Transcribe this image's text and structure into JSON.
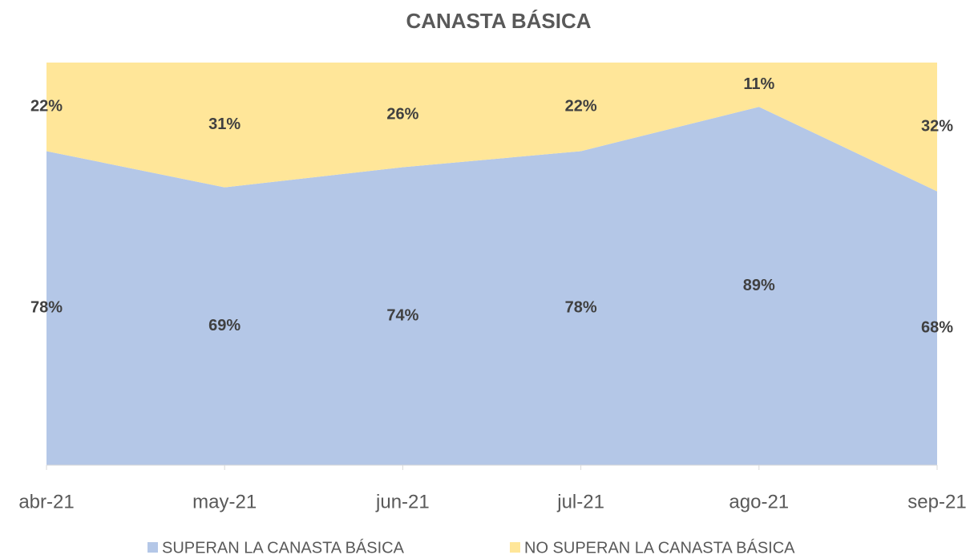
{
  "chart_data": {
    "type": "stacked_area",
    "title": "CANASTA BÁSICA",
    "categories": [
      "abr-21",
      "may-21",
      "jun-21",
      "jul-21",
      "ago-21",
      "sep-21"
    ],
    "series": [
      {
        "name": "SUPERAN LA CANASTA BÁSICA",
        "color": "#b4c7e7",
        "values": [
          78,
          69,
          74,
          78,
          89,
          68
        ],
        "value_labels": [
          "78%",
          "69%",
          "74%",
          "78%",
          "89%",
          "68%"
        ]
      },
      {
        "name": "NO SUPERAN LA CANASTA BÁSICA",
        "color": "#ffe699",
        "values": [
          22,
          31,
          26,
          22,
          11,
          32
        ],
        "value_labels": [
          "22%",
          "31%",
          "26%",
          "22%",
          "11%",
          "32%"
        ]
      }
    ],
    "legend": "bottom"
  }
}
